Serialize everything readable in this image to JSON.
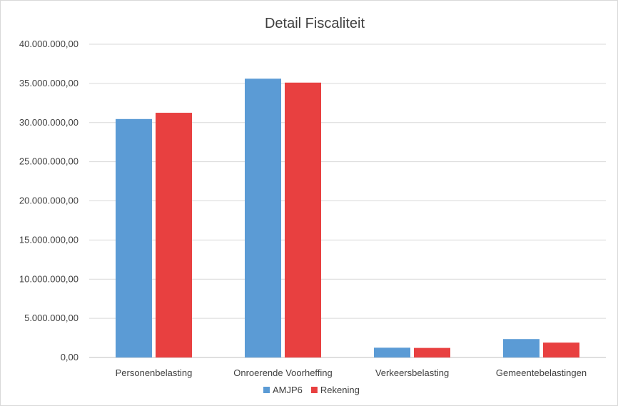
{
  "chart_data": {
    "type": "bar",
    "title": "Detail Fiscaliteit",
    "xlabel": "",
    "ylabel": "",
    "categories": [
      "Personenbelasting",
      "Onroerende Voorheffing",
      "Verkeersbelasting",
      "Gemeentebelastingen"
    ],
    "series": [
      {
        "name": "AMJP6",
        "color": "#5b9bd5",
        "values": [
          30450000,
          35600000,
          1250000,
          2350000
        ]
      },
      {
        "name": "Rekening",
        "color": "#e84040",
        "values": [
          31250000,
          35100000,
          1220000,
          1900000
        ]
      }
    ],
    "ylim": [
      0,
      40000000
    ],
    "yticks": [
      0,
      5000000,
      10000000,
      15000000,
      20000000,
      25000000,
      30000000,
      35000000,
      40000000
    ],
    "ytick_labels": [
      "0,00",
      "5.000.000,00",
      "10.000.000,00",
      "15.000.000,00",
      "20.000.000,00",
      "25.000.000,00",
      "30.000.000,00",
      "35.000.000,00",
      "40.000.000,00"
    ],
    "grid": true,
    "legend_position": "bottom"
  }
}
